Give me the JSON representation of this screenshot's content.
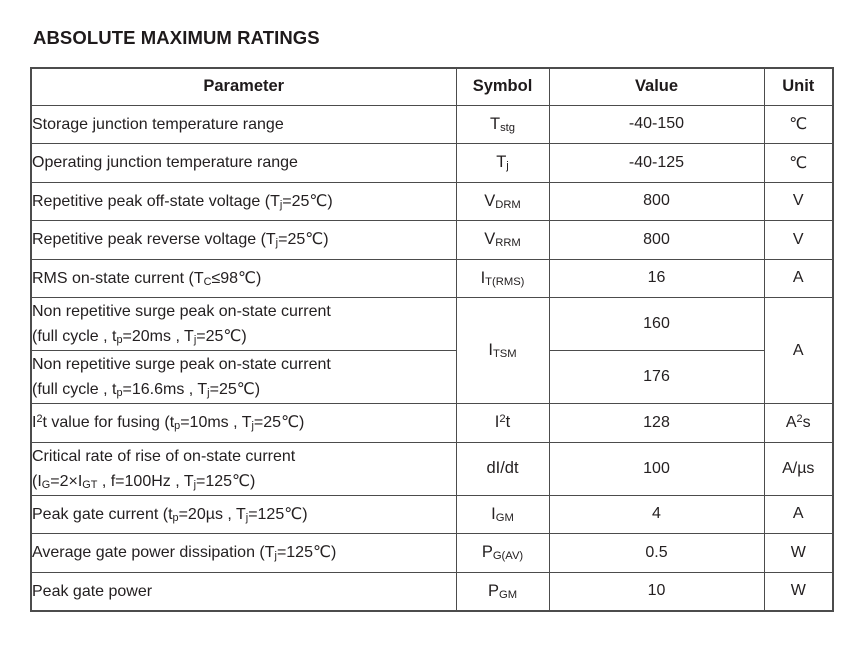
{
  "title": "ABSOLUTE MAXIMUM RATINGS",
  "table": {
    "headers": [
      "Parameter",
      "Symbol",
      "Value",
      "Unit"
    ],
    "rows": [
      {
        "parameter": "Storage junction temperature range",
        "symbol": "T~stg~",
        "value": "-40-150",
        "unit": "℃"
      },
      {
        "parameter": "Operating junction temperature range",
        "symbol": "T~j~",
        "value": "-40-125",
        "unit": "℃"
      },
      {
        "parameter": "Repetitive peak off-state voltage (T~j~=25℃)",
        "symbol": "V~DRM~",
        "value": "800",
        "unit": "V"
      },
      {
        "parameter": "Repetitive peak reverse voltage (T~j~=25℃)",
        "symbol": "V~RRM~",
        "value": "800",
        "unit": "V"
      },
      {
        "parameter": "RMS on-state current (T~C~≤98℃)",
        "symbol": "I~T(RMS)~",
        "value": "16",
        "unit": "A"
      },
      {
        "parameter": "Non repetitive surge peak on-state current\n(full cycle , t~p~=20ms , T~j~=25℃)",
        "symbol": "I~TSM~",
        "value": "160",
        "unit": "A"
      },
      {
        "parameter": "Non repetitive surge peak on-state current\n(full cycle , t~p~=16.6ms , T~j~=25℃)",
        "value": "176"
      },
      {
        "parameter": "I^2^t value for fusing (t~p~=10ms , T~j~=25℃)",
        "symbol": "I^2^t",
        "value": "128",
        "unit": "A^2^s"
      },
      {
        "parameter": "Critical rate of rise of on-state current\n(I~G~=2×I~GT~ , f=100Hz , T~j~=125℃)",
        "symbol": "dI/dt",
        "value": "100",
        "unit": "A/µs"
      },
      {
        "parameter": "Peak gate current (t~p~=20µs , T~j~=125℃)",
        "symbol": "I~GM~",
        "value": "4",
        "unit": "A"
      },
      {
        "parameter": "Average gate power dissipation (T~j~=125℃)",
        "symbol": "P~G(AV)~",
        "value": "0.5",
        "unit": "W"
      },
      {
        "parameter": "Peak gate power",
        "symbol": "P~GM~",
        "value": "10",
        "unit": "W"
      }
    ]
  }
}
